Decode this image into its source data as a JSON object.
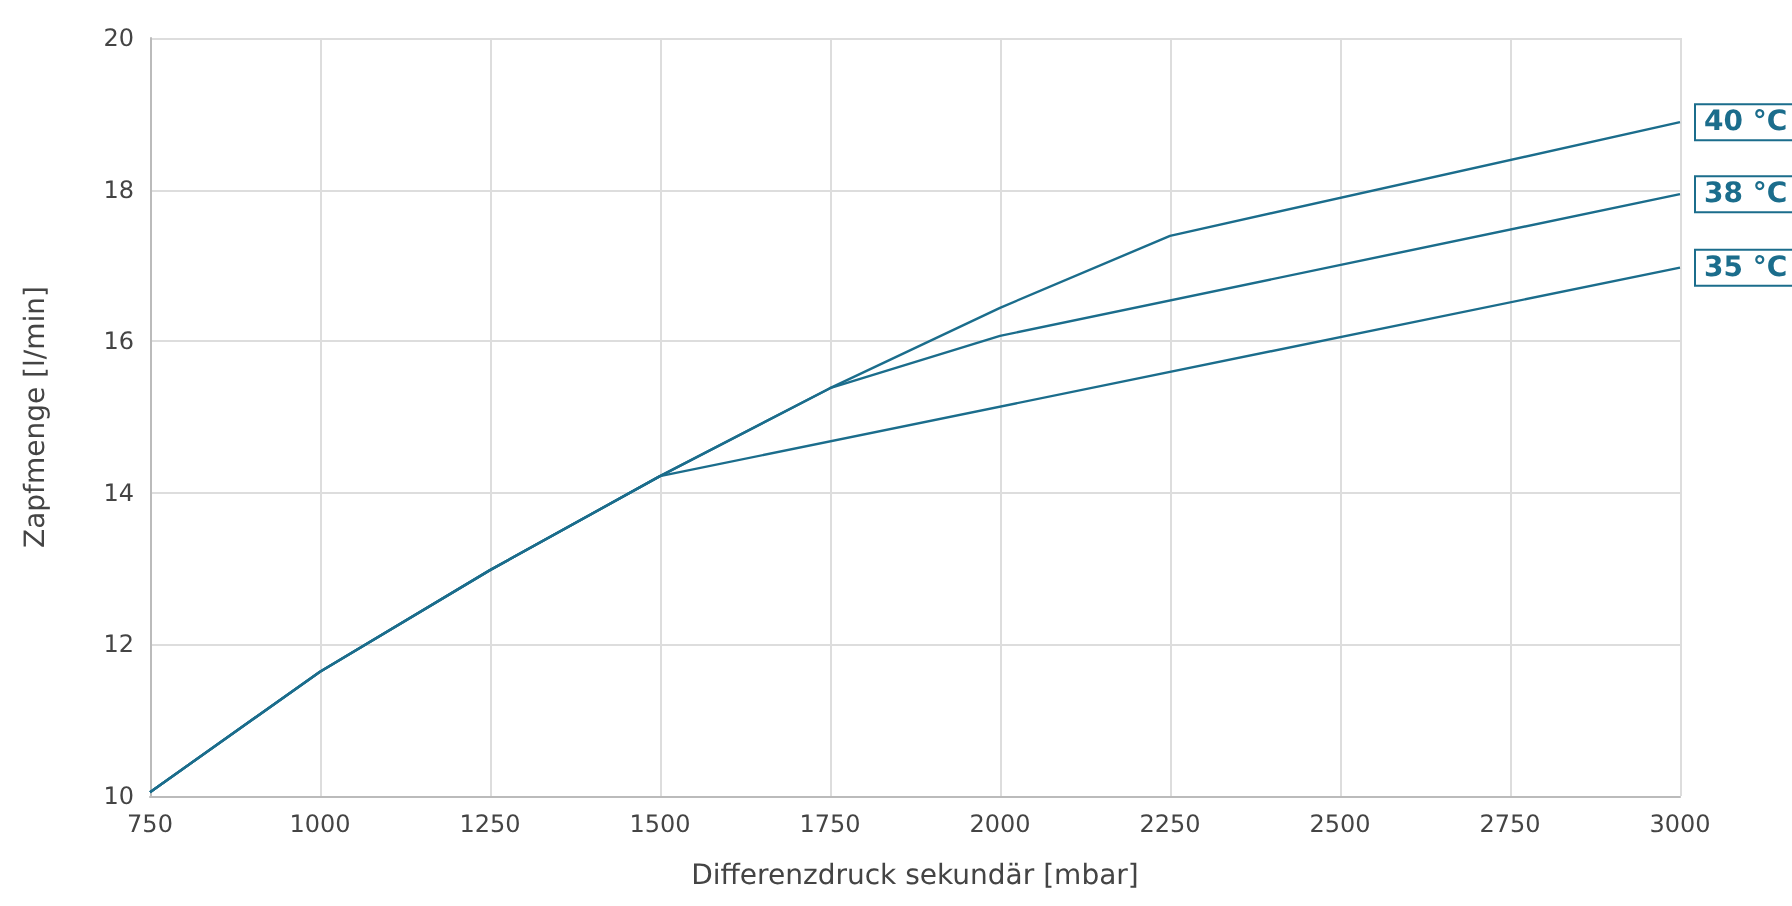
{
  "chart_data": {
    "type": "line",
    "xlabel": "Differenzdruck sekundär [mbar]",
    "ylabel": "Zapfmenge [l/min]",
    "xlim": [
      750,
      3000
    ],
    "xticks": [
      750,
      1000,
      1250,
      1500,
      1750,
      2000,
      2250,
      2500,
      2750,
      3000
    ],
    "ylim": [
      10,
      20
    ],
    "yticks": [
      10,
      12,
      14,
      16,
      18,
      20
    ],
    "grid": true,
    "legend": false,
    "marker": "none",
    "line_style": "solid",
    "series": [
      {
        "name": "40 °C",
        "color": "#1b6d8c",
        "x": [
          750,
          1000,
          1250,
          1500,
          1750,
          2000,
          2250,
          3000
        ],
        "values": [
          10.05,
          11.64,
          12.98,
          14.22,
          15.38,
          16.44,
          17.39,
          18.89
        ]
      },
      {
        "name": "38 °C",
        "color": "#1b6d8c",
        "x": [
          750,
          1000,
          1250,
          1500,
          1750,
          2000,
          3000
        ],
        "values": [
          10.05,
          11.64,
          12.98,
          14.22,
          15.38,
          16.07,
          17.94
        ]
      },
      {
        "name": "35 °C",
        "color": "#1b6d8c",
        "x": [
          750,
          1000,
          1250,
          1500,
          3000
        ],
        "values": [
          10.05,
          11.64,
          12.98,
          14.22,
          16.97
        ]
      }
    ]
  }
}
